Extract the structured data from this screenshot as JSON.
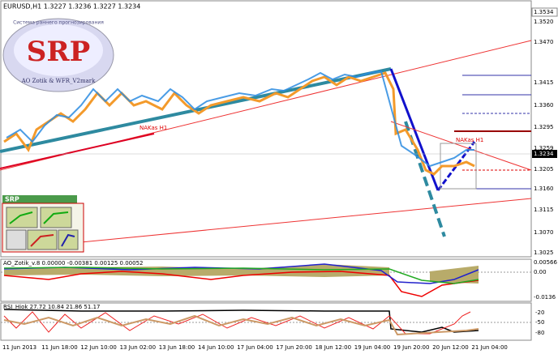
{
  "header": {
    "title": "EURUSD,H1 1.3227 1.3236 1.3227 1.3234"
  },
  "price_axis": {
    "current": "1.3234",
    "top": "1.3534",
    "labels": [
      "1.3520",
      "1.3470",
      "1.3415",
      "1.3360",
      "1.3295",
      "1.3259",
      "1.3205",
      "1.3160",
      "1.3115",
      "1.3070",
      "1.3025"
    ]
  },
  "annotations": {
    "left_line": "NAKas H1",
    "right_line": "NAKas H1"
  },
  "logo": {
    "title": "SRP",
    "top_text": "Система раннего прогнозирования",
    "bottom_text": "AO Zotik & WFR_V2mark"
  },
  "panel": {
    "title": "SRP"
  },
  "indicator1": {
    "label": "AO_Zotik_v.8 0.00000 -0.00381 0.00125 0.00052",
    "axis": [
      "0.00566",
      "0.00",
      "-0.0136"
    ]
  },
  "indicator2": {
    "label": "RSI_Hiok 27.72 10.84 21.86 51.17",
    "axis": [
      "-20",
      "-50",
      "-80"
    ]
  },
  "time_axis": [
    "11 Jun 2013",
    "11 Jun 18:00",
    "12 Jun 10:00",
    "13 Jun 02:00",
    "13 Jun 18:00",
    "14 Jun 10:00",
    "17 Jun 04:00",
    "17 Jun 20:00",
    "18 Jun 12:00",
    "19 Jun 04:00",
    "19 Jun 20:00",
    "20 Jun 12:00",
    "21 Jun 04:00"
  ]
}
